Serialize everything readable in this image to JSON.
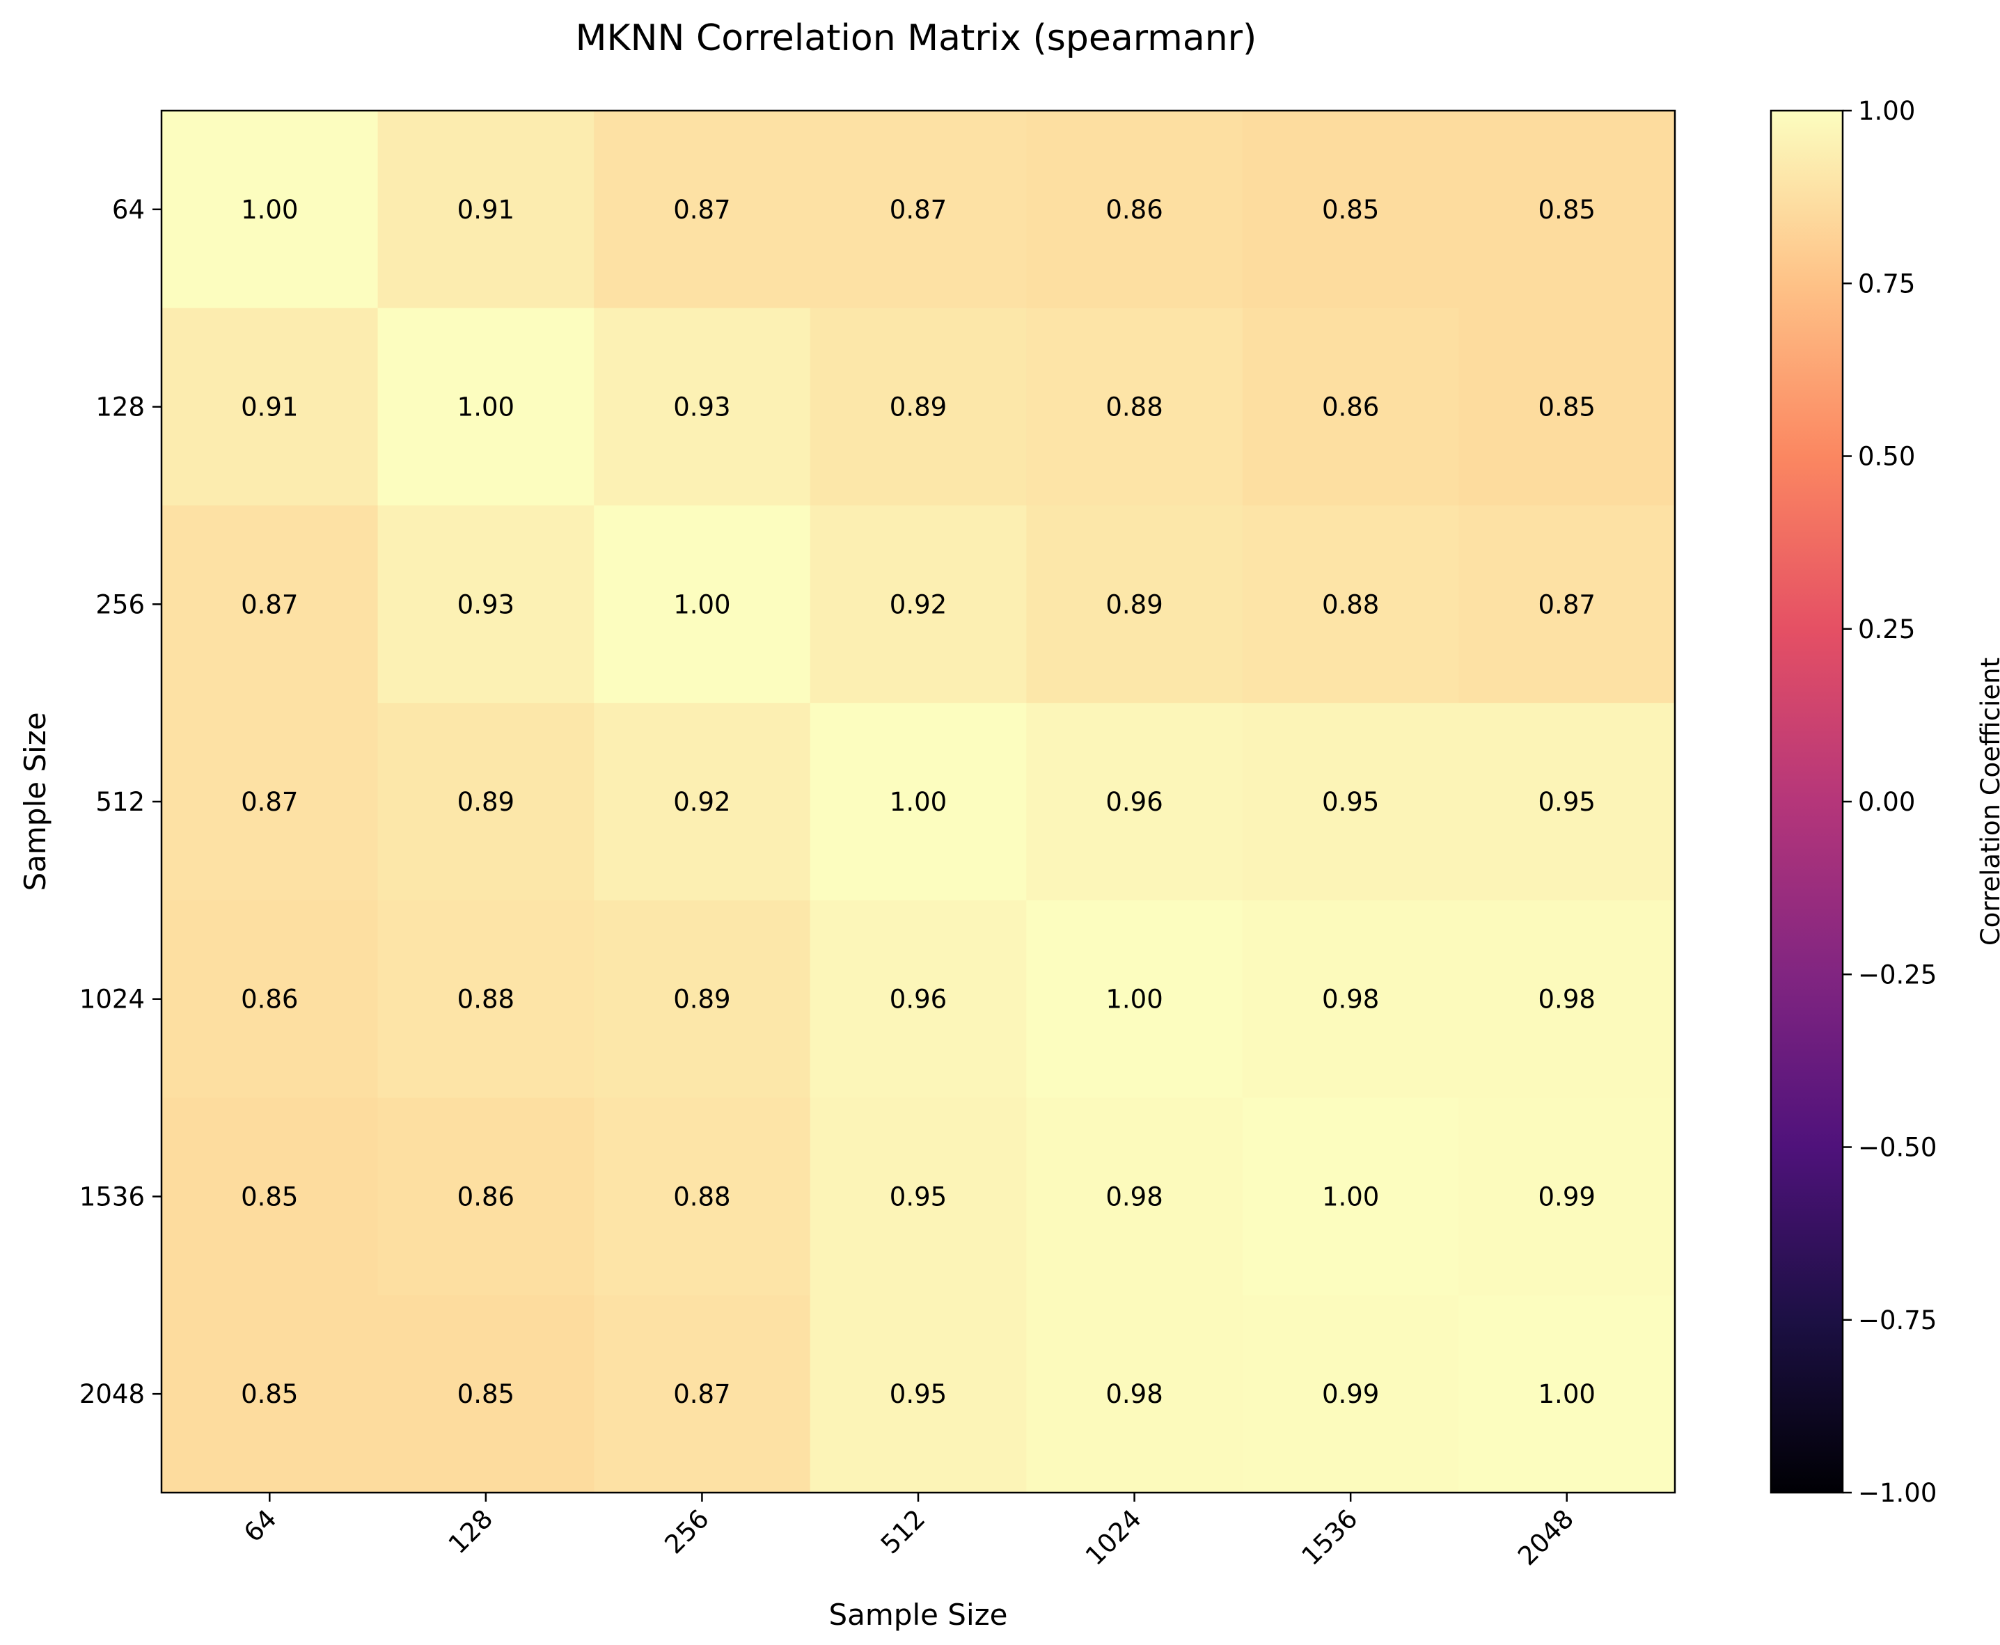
{
  "chart_data": {
    "type": "heatmap",
    "title": "MKNN Correlation Matrix (spearmanr)",
    "xlabel": "Sample Size",
    "ylabel": "Sample Size",
    "x_categories": [
      "64",
      "128",
      "256",
      "512",
      "1024",
      "1536",
      "2048"
    ],
    "y_categories": [
      "64",
      "128",
      "256",
      "512",
      "1024",
      "1536",
      "2048"
    ],
    "values": [
      [
        1.0,
        0.91,
        0.87,
        0.87,
        0.86,
        0.85,
        0.85
      ],
      [
        0.91,
        1.0,
        0.93,
        0.89,
        0.88,
        0.86,
        0.85
      ],
      [
        0.87,
        0.93,
        1.0,
        0.92,
        0.89,
        0.88,
        0.87
      ],
      [
        0.87,
        0.89,
        0.92,
        1.0,
        0.96,
        0.95,
        0.95
      ],
      [
        0.86,
        0.88,
        0.89,
        0.96,
        1.0,
        0.98,
        0.98
      ],
      [
        0.85,
        0.86,
        0.88,
        0.95,
        0.98,
        1.0,
        0.99
      ],
      [
        0.85,
        0.85,
        0.87,
        0.95,
        0.98,
        0.99,
        1.0
      ]
    ],
    "colormap": "magma",
    "colorbar": {
      "label": "Correlation Coefficient",
      "range": [
        -1.0,
        1.0
      ],
      "ticks": [
        "−1.00",
        "−0.75",
        "−0.50",
        "−0.25",
        "0.00",
        "0.25",
        "0.50",
        "0.75",
        "1.00"
      ]
    },
    "grid": false
  }
}
